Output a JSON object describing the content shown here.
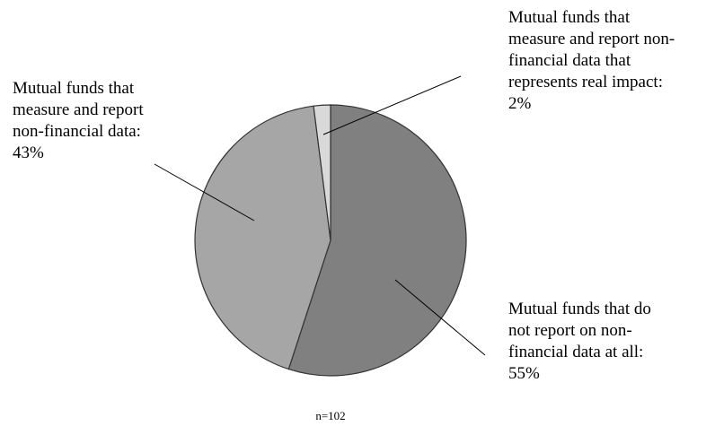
{
  "chart_data": {
    "type": "pie",
    "slices": [
      {
        "label_lines": [
          "Mutual funds that do",
          "not report on non-",
          "financial data at all:",
          "55%"
        ],
        "value": 55,
        "color": "#808080"
      },
      {
        "label_lines": [
          "Mutual funds that",
          "measure and report",
          "non-financial data:",
          "43%"
        ],
        "value": 43,
        "color": "#a6a6a6"
      },
      {
        "label_lines": [
          "Mutual funds that",
          "measure and report non-",
          "financial data that",
          "represents real impact:",
          "2%"
        ],
        "value": 2,
        "color": "#d9d9d9"
      }
    ],
    "start": "12 o'clock",
    "direction": "clockwise",
    "note": "n=102"
  }
}
